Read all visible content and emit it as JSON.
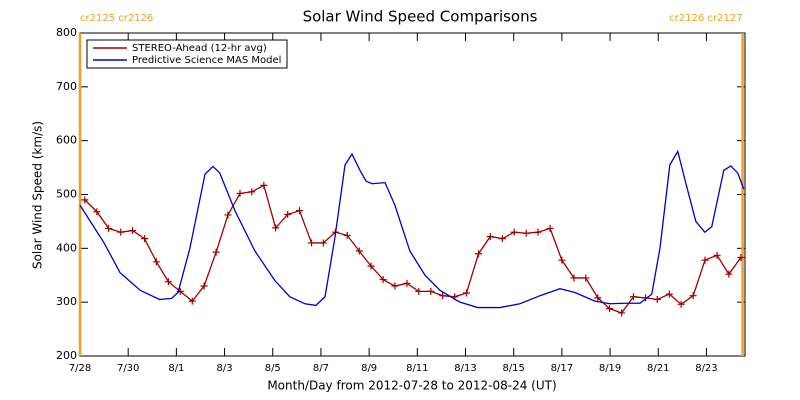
{
  "chart_data": {
    "type": "line",
    "title": "Solar Wind Speed Comparisons",
    "x_label": "Month/Day from 2012-07-28 to 2012-08-24 (UT)",
    "y_label": "Solar Wind Speed (km/s)",
    "xlim": [
      0,
      27.6
    ],
    "xticks": [
      {
        "value": 0,
        "label": "7/28"
      },
      {
        "value": 2,
        "label": "7/30"
      },
      {
        "value": 4,
        "label": "8/1"
      },
      {
        "value": 6,
        "label": "8/3"
      },
      {
        "value": 8,
        "label": "8/5"
      },
      {
        "value": 10,
        "label": "8/7"
      },
      {
        "value": 12,
        "label": "8/9"
      },
      {
        "value": 14,
        "label": "8/11"
      },
      {
        "value": 16,
        "label": "8/13"
      },
      {
        "value": 18,
        "label": "8/15"
      },
      {
        "value": 20,
        "label": "8/17"
      },
      {
        "value": 22,
        "label": "8/19"
      },
      {
        "value": 24,
        "label": "8/21"
      },
      {
        "value": 26,
        "label": "8/23"
      }
    ],
    "ylim": [
      200,
      800
    ],
    "yticks": [
      200,
      300,
      400,
      500,
      600,
      700,
      800
    ],
    "legend": "upper left",
    "annotations": [
      {
        "x": 0,
        "label": "cr2125 cr2126"
      },
      {
        "x": 27.5,
        "label": "cr2126 cr2127"
      }
    ],
    "annotation_color": "#f0a020",
    "series": [
      {
        "name": "STEREO-Ahead (12-hr avg)",
        "color": "#a00000",
        "markers": true,
        "x": [
          0.2,
          0.7,
          1.19,
          1.69,
          2.18,
          2.68,
          3.17,
          3.67,
          4.16,
          4.66,
          5.15,
          5.65,
          6.14,
          6.64,
          7.13,
          7.63,
          8.12,
          8.62,
          9.11,
          9.61,
          10.1,
          10.6,
          11.09,
          11.59,
          12.08,
          12.58,
          13.07,
          13.57,
          14.06,
          14.56,
          15.05,
          15.55,
          16.04,
          16.54,
          17.03,
          17.53,
          18.02,
          18.52,
          19.01,
          19.51,
          20.0,
          20.5,
          20.99,
          21.49,
          21.98,
          22.48,
          22.97,
          23.47,
          23.96,
          24.46,
          24.95,
          25.45,
          25.94,
          26.44,
          26.93,
          27.43
        ],
        "values": [
          490,
          468,
          437,
          430,
          433,
          418,
          375,
          338,
          320,
          302,
          330,
          393,
          462,
          502,
          505,
          517,
          438,
          463,
          470,
          410,
          410,
          430,
          424,
          395,
          367,
          342,
          330,
          335,
          320,
          320,
          312,
          310,
          317,
          390,
          422,
          418,
          430,
          428,
          430,
          437,
          378,
          345,
          345,
          308,
          288,
          280,
          310,
          308,
          305,
          315,
          296,
          312,
          378,
          387,
          352,
          383
        ]
      },
      {
        "name": "Predictive Science MAS Model",
        "color": "#0000cc",
        "markers": false,
        "x": [
          0,
          1,
          1.66,
          2.5,
          3.3,
          3.8,
          4.07,
          4.56,
          5.19,
          5.52,
          5.8,
          6.43,
          7.26,
          8.09,
          8.71,
          9.34,
          9.79,
          10.17,
          10.58,
          11.0,
          11.29,
          11.62,
          11.87,
          12.12,
          12.66,
          13.07,
          13.69,
          14.32,
          14.94,
          15.77,
          16.51,
          17.43,
          18.26,
          19.09,
          19.92,
          20.54,
          21.37,
          21.99,
          22.61,
          23.24,
          23.73,
          24.07,
          24.48,
          24.81,
          25.15,
          25.56,
          25.93,
          26.22,
          26.72,
          27.01,
          27.3,
          27.55
        ],
        "values": [
          480,
          410,
          355,
          322,
          305,
          307,
          318,
          400,
          538,
          552,
          540,
          470,
          395,
          340,
          310,
          297,
          294,
          310,
          420,
          555,
          575,
          545,
          525,
          520,
          522,
          480,
          395,
          350,
          322,
          300,
          290,
          290,
          297,
          312,
          325,
          318,
          302,
          297,
          298,
          298,
          315,
          400,
          555,
          580,
          520,
          450,
          430,
          440,
          545,
          553,
          540,
          510
        ]
      }
    ]
  }
}
